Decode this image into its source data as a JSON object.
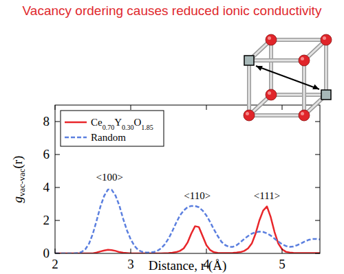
{
  "chart_data": {
    "type": "line",
    "title": "Vacancy ordering causes reduced ionic conductivity",
    "x_label": "Distance, r (Å)",
    "y_label": "gvac-vac(r)",
    "x": [
      2.0,
      2.05,
      2.1,
      2.15,
      2.2,
      2.25,
      2.3,
      2.35,
      2.4,
      2.45,
      2.5,
      2.55,
      2.6,
      2.65,
      2.7,
      2.75,
      2.8,
      2.85,
      2.9,
      2.95,
      3.0,
      3.05,
      3.1,
      3.15,
      3.2,
      3.25,
      3.3,
      3.35,
      3.4,
      3.45,
      3.5,
      3.55,
      3.6,
      3.65,
      3.7,
      3.75,
      3.8,
      3.85,
      3.9,
      3.95,
      4.0,
      4.05,
      4.1,
      4.15,
      4.2,
      4.25,
      4.3,
      4.35,
      4.4,
      4.45,
      4.5,
      4.55,
      4.6,
      4.65,
      4.7,
      4.75,
      4.8,
      4.85,
      4.9,
      4.95,
      5.0,
      5.05,
      5.1,
      5.15,
      5.2,
      5.25,
      5.3,
      5.35,
      5.4,
      5.45,
      5.5
    ],
    "series": [
      {
        "name": "Ce0.70Y0.30O1.85",
        "color": "#e8262a",
        "line_style": "solid",
        "values": [
          0,
          0,
          0,
          0,
          0,
          0,
          0,
          0,
          0,
          0,
          0,
          0.05,
          0.12,
          0.18,
          0.22,
          0.2,
          0.15,
          0.08,
          0.04,
          0.02,
          0,
          0,
          0,
          0,
          0,
          0,
          0,
          0,
          0,
          0.01,
          0.02,
          0.04,
          0.08,
          0.15,
          0.3,
          0.65,
          1.2,
          1.65,
          1.6,
          1.05,
          0.5,
          0.2,
          0.07,
          0.03,
          0.02,
          0.02,
          0.02,
          0.03,
          0.05,
          0.08,
          0.15,
          0.3,
          0.6,
          1.2,
          2.0,
          2.6,
          2.85,
          2.2,
          1.3,
          0.6,
          0.25,
          0.1,
          0.05,
          0.03,
          0.02,
          0.02,
          0.02,
          0.02,
          0.02,
          0.02,
          0.02
        ]
      },
      {
        "name": "Random",
        "color": "#5b7fdf",
        "line_style": "dashed",
        "values": [
          0,
          0,
          0,
          0,
          0,
          0,
          0.02,
          0.08,
          0.25,
          0.6,
          1.2,
          2.0,
          2.85,
          3.5,
          3.88,
          3.85,
          3.5,
          2.9,
          2.1,
          1.4,
          0.85,
          0.45,
          0.2,
          0.1,
          0.06,
          0.05,
          0.08,
          0.15,
          0.3,
          0.55,
          0.9,
          1.35,
          1.85,
          2.3,
          2.6,
          2.8,
          2.88,
          2.88,
          2.8,
          2.6,
          2.3,
          1.9,
          1.45,
          1.05,
          0.7,
          0.5,
          0.4,
          0.4,
          0.5,
          0.68,
          0.88,
          1.05,
          1.2,
          1.28,
          1.32,
          1.3,
          1.22,
          1.08,
          0.9,
          0.72,
          0.55,
          0.45,
          0.4,
          0.42,
          0.5,
          0.6,
          0.72,
          0.82,
          0.87,
          0.88,
          0.85
        ]
      }
    ],
    "xlim": [
      2,
      5.5
    ],
    "xticks": [
      2,
      3,
      4,
      5
    ],
    "ylim": [
      0,
      9
    ],
    "yticks": [
      0,
      2,
      4,
      6,
      8
    ],
    "grid": false,
    "legend": "upper left",
    "annotations": [
      {
        "text": "<100>",
        "x": 2.72,
        "y": 4.4
      },
      {
        "text": "<110>",
        "x": 3.88,
        "y": 3.3
      },
      {
        "text": "<111>",
        "x": 4.8,
        "y": 3.3
      }
    ]
  }
}
